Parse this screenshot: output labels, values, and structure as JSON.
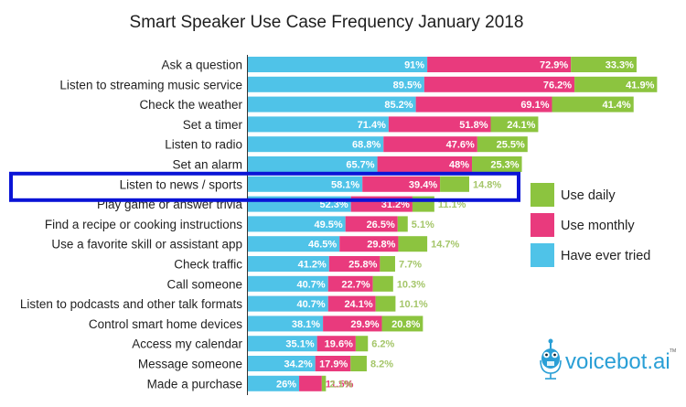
{
  "chart_data": {
    "type": "bar",
    "orientation": "horizontal",
    "stacked": true,
    "title": "Smart Speaker Use Case Frequency January 2018",
    "xlabel": "",
    "ylabel": "",
    "grid": false,
    "legend_position": "right",
    "categories": [
      "Ask a question",
      "Listen to streaming music service",
      "Check the weather",
      "Set a timer",
      "Listen to radio",
      "Set an alarm",
      "Listen to news / sports",
      "Play game or answer trivia",
      "Find a recipe or cooking instructions",
      "Use a favorite skill or assistant app",
      "Check traffic",
      "Call someone",
      "Listen to podcasts and other talk formats",
      "Control smart home devices",
      "Access my calendar",
      "Message someone",
      "Made a purchase"
    ],
    "series": [
      {
        "name": "Have ever tried",
        "color": "#4fc3e8",
        "values": [
          91,
          89.5,
          85.2,
          71.4,
          68.8,
          65.7,
          58.1,
          52.3,
          49.5,
          46.5,
          41.2,
          40.7,
          40.7,
          38.1,
          35.1,
          34.2,
          26
        ],
        "labels": [
          "91%",
          "89.5%",
          "85.2%",
          "71.4%",
          "68.8%",
          "65.7%",
          "58.1%",
          "52.3%",
          "49.5%",
          "46.5%",
          "41.2%",
          "40.7%",
          "40.7%",
          "38.1%",
          "35.1%",
          "34.2%",
          "26%"
        ]
      },
      {
        "name": "Use monthly",
        "color": "#e93a7d",
        "values": [
          72.9,
          76.2,
          69.1,
          51.8,
          47.6,
          48,
          39.4,
          31.2,
          26.5,
          29.8,
          25.8,
          22.7,
          24.1,
          29.9,
          19.6,
          17.9,
          11.5
        ],
        "labels": [
          "72.9%",
          "76.2%",
          "69.1%",
          "51.8%",
          "47.6%",
          "48%",
          "39.4%",
          "31.2%",
          "26.5%",
          "29.8%",
          "25.8%",
          "22.7%",
          "24.1%",
          "29.9%",
          "19.6%",
          "17.9%",
          "11.5%"
        ]
      },
      {
        "name": "Use daily",
        "color": "#8cc43f",
        "values": [
          33.3,
          41.9,
          41.4,
          24.1,
          25.5,
          25.3,
          14.8,
          11.1,
          5.1,
          14.7,
          7.7,
          10.3,
          10.1,
          20.8,
          6.2,
          8.2,
          2.1
        ],
        "labels": [
          "33.3%",
          "41.9%",
          "41.4%",
          "24.1%",
          "25.5%",
          "25.3%",
          "14.8%",
          "11.1%",
          "5.1%",
          "14.7%",
          "7.7%",
          "10.3%",
          "10.1%",
          "20.8%",
          "6.2%",
          "8.2%",
          "2.1%"
        ]
      }
    ],
    "legend": [
      "Use daily",
      "Use monthly",
      "Have ever tried"
    ],
    "highlighted_category": "Listen to news / sports",
    "highlight_color": "#0a14d6"
  },
  "branding": {
    "logo_text": "voicebot.ai",
    "trademark": "TM"
  }
}
